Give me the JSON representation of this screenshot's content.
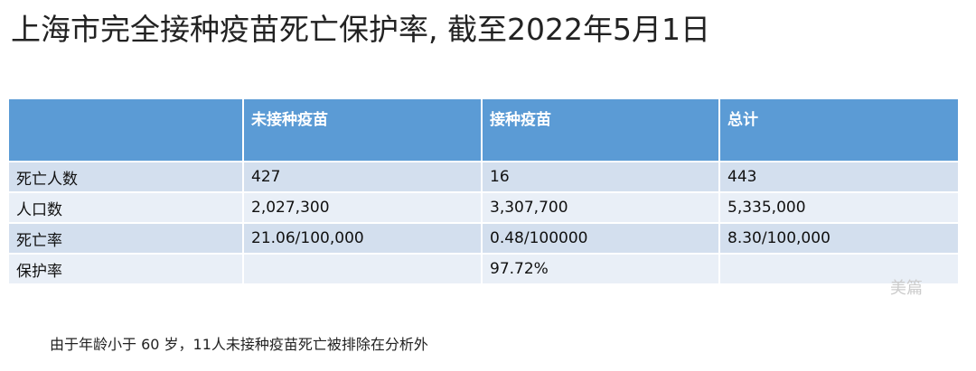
{
  "header": {
    "title": "上海市完全接种疫苗死亡保护率, 截至2022年5月1日"
  },
  "table": {
    "columns": [
      null,
      "未接种疫苗",
      "接种疫苗",
      "总计"
    ],
    "rows": [
      [
        "死亡人数",
        "427",
        "16",
        "443"
      ],
      [
        "人口数",
        "2,027,300",
        "3,307,700",
        "5,335,000"
      ],
      [
        "死亡率",
        "21.06/100,000",
        "0.48/100000",
        "8.30/100,000"
      ],
      [
        "保护率",
        null,
        "97.72%",
        null
      ]
    ]
  },
  "footnote": "由于年龄小于 60 岁，11人未接种疫苗死亡被排除在分析外",
  "watermark": "美篇"
}
